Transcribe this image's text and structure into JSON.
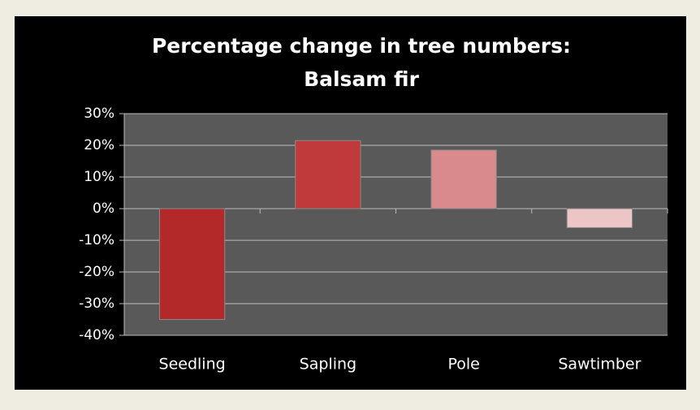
{
  "chart_data": {
    "type": "bar",
    "title": [
      "Percentage change in tree numbers:",
      "Balsam fir"
    ],
    "categories": [
      "Seedling",
      "Sapling",
      "Pole",
      "Sawtimber"
    ],
    "values": [
      -35,
      21.5,
      18.5,
      -6
    ],
    "colors": [
      "#b3292a",
      "#c13a3b",
      "#d98a8c",
      "#ecc5c6"
    ],
    "ylim": [
      -40,
      30
    ],
    "yticks": [
      {
        "value": -40,
        "label": "-40%"
      },
      {
        "value": -30,
        "label": "-30%"
      },
      {
        "value": -20,
        "label": "-20%"
      },
      {
        "value": -10,
        "label": "-10%"
      },
      {
        "value": 0,
        "label": "0%"
      },
      {
        "value": 10,
        "label": "10%"
      },
      {
        "value": 20,
        "label": "20%"
      },
      {
        "value": 30,
        "label": "30%"
      }
    ],
    "grid": true
  }
}
